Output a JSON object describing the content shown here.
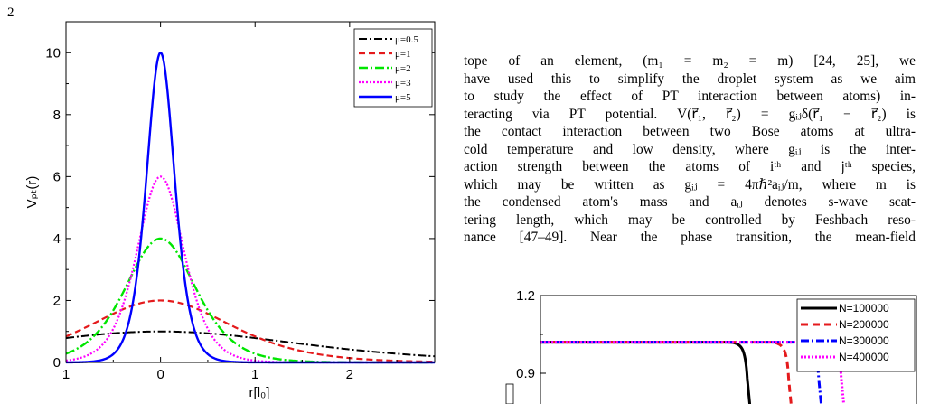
{
  "page_number": "2",
  "text": {
    "lines": [
      "tope of an element, (m₁ = m₂ = m) [24, 25], we",
      "have used this to simplify the droplet system as we aim",
      "to study the effect of PT interaction between atoms) in-",
      "teracting via PT potential. V(r⃗₁, r⃗₂) = gᵢⱼδ(r⃗₁ − r⃗₂) is",
      "the contact interaction between two Bose atoms at ultra-",
      "cold temperature and low density, where gᵢⱼ is the inter-",
      "action strength between the atoms of iᵗʰ and jᵗʰ species,",
      "which may be written as gᵢⱼ = 4πℏ²aᵢⱼ/m, where m is",
      "the condensed atom's mass and aᵢⱼ denotes s-wave scat-",
      "tering length, which may be controlled by Feshbach reso-",
      "nance [47–49]. Near the phase transition, the mean-field"
    ]
  },
  "chart_data": [
    {
      "type": "line",
      "title": "",
      "xlabel": "r[l₀]",
      "ylabel": "Vₚₜ(r)",
      "xlim": [
        -1,
        2.9
      ],
      "ylim": [
        0,
        11
      ],
      "xticks": [
        {
          "v": -1,
          "label": "1"
        },
        {
          "v": 0,
          "label": "0"
        },
        {
          "v": 1,
          "label": "1"
        },
        {
          "v": 2,
          "label": "2"
        }
      ],
      "yticks": [
        {
          "v": 0,
          "label": "0"
        },
        {
          "v": 2,
          "label": "2"
        },
        {
          "v": 4,
          "label": "4"
        },
        {
          "v": 6,
          "label": "6"
        },
        {
          "v": 8,
          "label": "8"
        },
        {
          "v": 10,
          "label": "10"
        }
      ],
      "legend_position": "top-right",
      "series": [
        {
          "name": "μ=0.5",
          "mu": 0.5,
          "color": "#000000",
          "dash": "9,3,2,3",
          "width": 2
        },
        {
          "name": "μ=1",
          "mu": 1,
          "color": "#e41a1c",
          "dash": "7,4",
          "width": 2.2
        },
        {
          "name": "μ=2",
          "mu": 2,
          "color": "#00e600",
          "dash": "10,3,2,3",
          "width": 2.4
        },
        {
          "name": "μ=3",
          "mu": 3,
          "color": "#ff00ff",
          "dash": "2,2",
          "width": 2.2
        },
        {
          "name": "μ=5",
          "mu": 5,
          "color": "#0000ff",
          "dash": "",
          "width": 2.4
        }
      ]
    },
    {
      "type": "line",
      "title": "",
      "xlabel": "",
      "ylabel": "",
      "yticks": [
        {
          "v": 1.2,
          "label": "1.2"
        },
        {
          "v": 0.9,
          "label": "0.9"
        }
      ],
      "legend_position": "top-right",
      "series": [
        {
          "name": "N=100000",
          "color": "#000000",
          "dash": "",
          "width": 3,
          "plateau": 1.02,
          "drop_x": 0.55
        },
        {
          "name": "N=200000",
          "color": "#e41a1c",
          "dash": "8,5",
          "width": 3,
          "plateau": 1.02,
          "drop_x": 0.66
        },
        {
          "name": "N=300000",
          "color": "#0000ff",
          "dash": "9,3,2,3",
          "width": 3,
          "plateau": 1.02,
          "drop_x": 0.74
        },
        {
          "name": "N=400000",
          "color": "#ff00ff",
          "dash": "2,2",
          "width": 3,
          "plateau": 1.02,
          "drop_x": 0.8
        }
      ]
    }
  ]
}
